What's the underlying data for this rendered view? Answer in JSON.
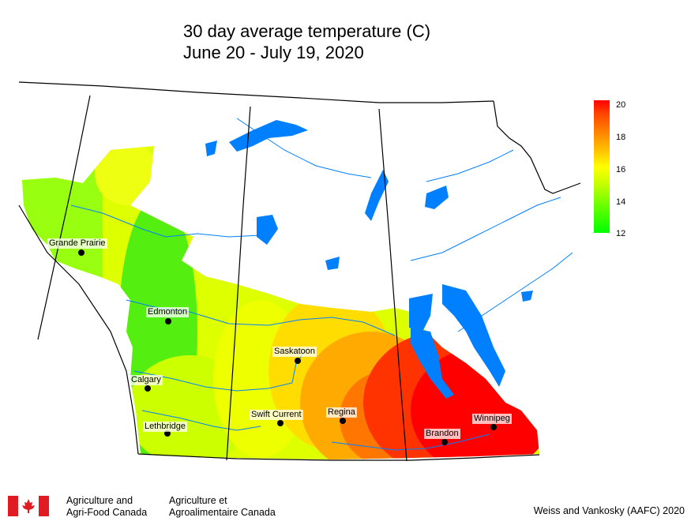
{
  "title": {
    "line1": "30 day average temperature (C)",
    "line2": "June 20 - July 19, 2020"
  },
  "legend": {
    "ticks": [
      "20",
      "18",
      "16",
      "14",
      "12"
    ],
    "colors": {
      "high": "#ff0000",
      "mid": "#ffff00",
      "low": "#00ff00"
    }
  },
  "cities": {
    "grande_prairie": "Grande Prairie",
    "edmonton": "Edmonton",
    "calgary": "Calgary",
    "lethbridge": "Lethbridge",
    "saskatoon": "Saskatoon",
    "swift_current": "Swift Current",
    "regina": "Regina",
    "brandon": "Brandon",
    "winnipeg": "Winnipeg"
  },
  "footer": {
    "dept_en_1": "Agriculture and",
    "dept_en_2": "Agri-Food Canada",
    "dept_fr_1": "Agriculture et",
    "dept_fr_2": "Agroalimentaire Canada",
    "credit": "Weiss and Vankosky (AAFC) 2020"
  },
  "water_color": "#0080ff",
  "border_color": "#000000"
}
